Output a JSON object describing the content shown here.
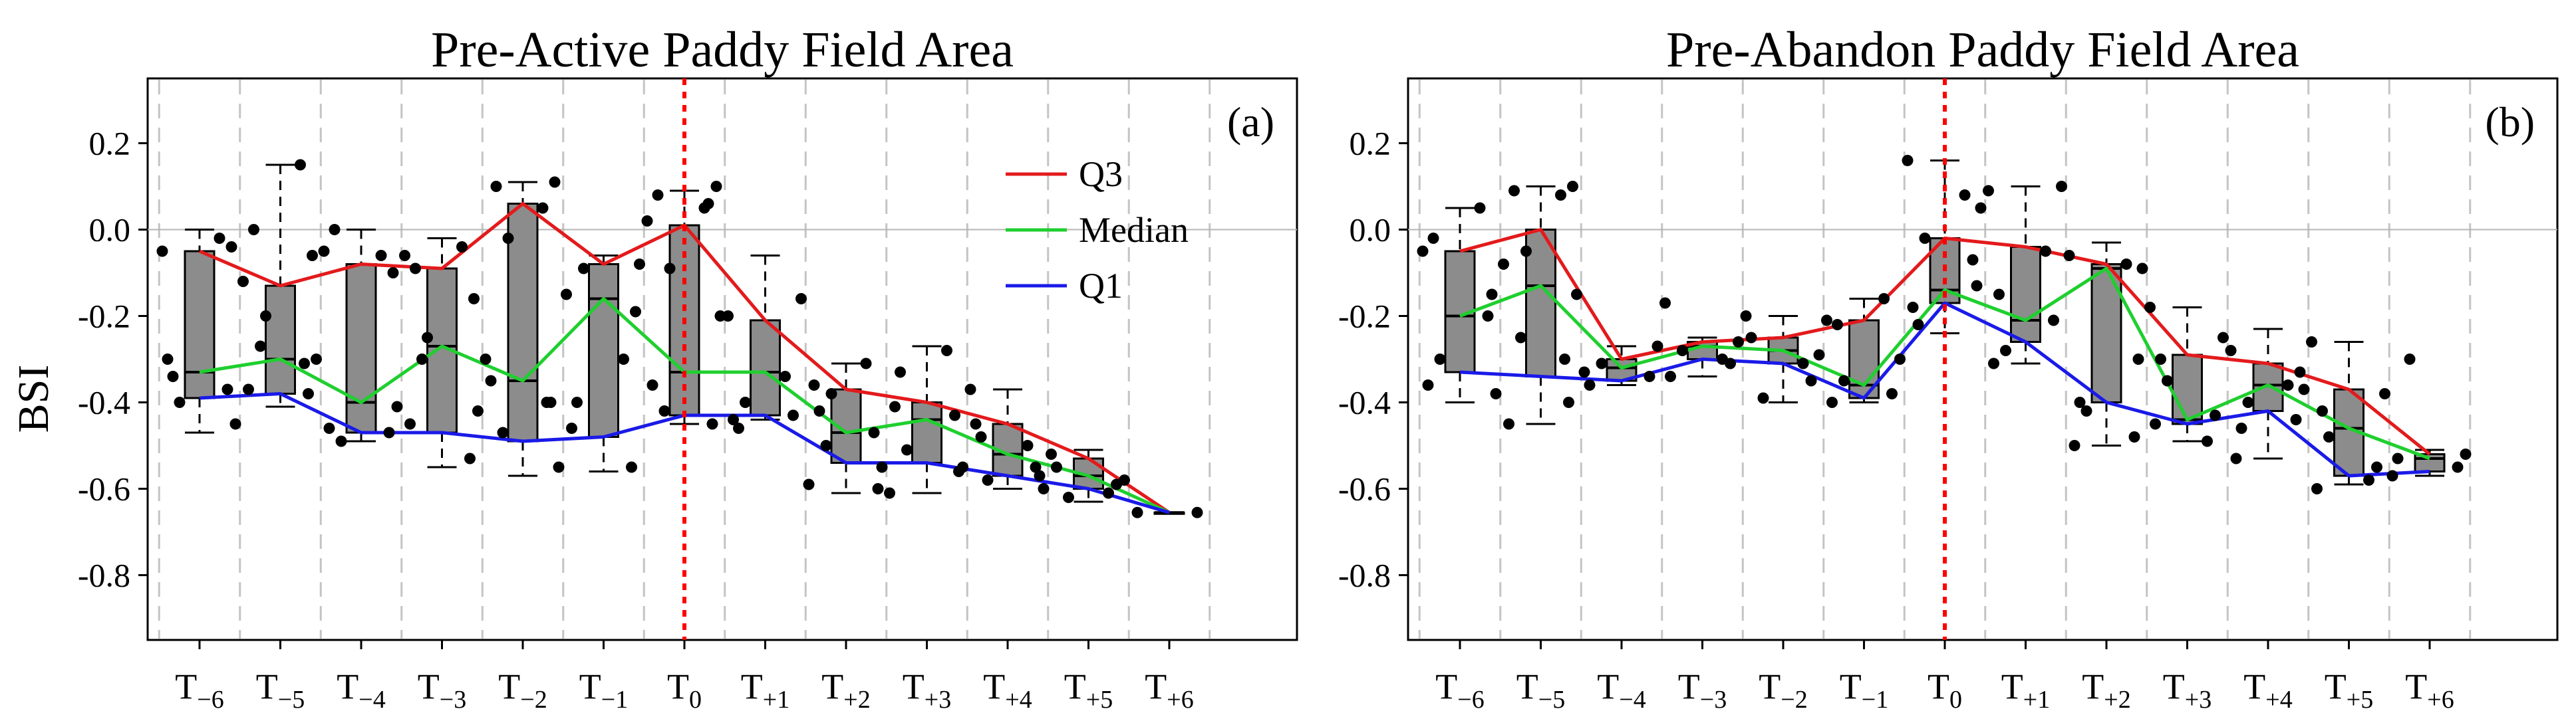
{
  "ylabel": "BSI",
  "chart_data": [
    {
      "type": "box",
      "panel_label": "(a)",
      "title": "Pre-Active Paddy Field Area",
      "ylabel": "BSI",
      "ylim": [
        -0.95,
        0.35
      ],
      "yticks": [
        0.2,
        0.0,
        -0.2,
        -0.4,
        -0.6,
        -0.8
      ],
      "ytick_labels": [
        "0.2",
        "0.0",
        "-0.2",
        "-0.4",
        "-0.6",
        "-0.8"
      ],
      "reference_line_y": 0.0,
      "event_line_category": "T0",
      "categories": [
        "T-6",
        "T-5",
        "T-4",
        "T-3",
        "T-2",
        "T-1",
        "T0",
        "T+1",
        "T+2",
        "T+3",
        "T+4",
        "T+5",
        "T+6"
      ],
      "tick_labels": [
        {
          "base": "T",
          "sub": "−6"
        },
        {
          "base": "T",
          "sub": "−5"
        },
        {
          "base": "T",
          "sub": "−4"
        },
        {
          "base": "T",
          "sub": "−3"
        },
        {
          "base": "T",
          "sub": "−2"
        },
        {
          "base": "T",
          "sub": "−1"
        },
        {
          "base": "T",
          "sub": "0"
        },
        {
          "base": "T",
          "sub": "+1"
        },
        {
          "base": "T",
          "sub": "+2"
        },
        {
          "base": "T",
          "sub": "+3"
        },
        {
          "base": "T",
          "sub": "+4"
        },
        {
          "base": "T",
          "sub": "+5"
        },
        {
          "base": "T",
          "sub": "+6"
        }
      ],
      "boxes": [
        {
          "whisker_low": -0.47,
          "q1": -0.39,
          "median": -0.33,
          "q3": -0.05,
          "whisker_high": 0.0
        },
        {
          "whisker_low": -0.41,
          "q1": -0.38,
          "median": -0.3,
          "q3": -0.13,
          "whisker_high": 0.15
        },
        {
          "whisker_low": -0.49,
          "q1": -0.47,
          "median": -0.4,
          "q3": -0.08,
          "whisker_high": 0.0
        },
        {
          "whisker_low": -0.55,
          "q1": -0.47,
          "median": -0.27,
          "q3": -0.09,
          "whisker_high": -0.02
        },
        {
          "whisker_low": -0.57,
          "q1": -0.49,
          "median": -0.35,
          "q3": 0.06,
          "whisker_high": 0.11
        },
        {
          "whisker_low": -0.56,
          "q1": -0.48,
          "median": -0.16,
          "q3": -0.08,
          "whisker_high": -0.06
        },
        {
          "whisker_low": -0.45,
          "q1": -0.43,
          "median": -0.33,
          "q3": 0.01,
          "whisker_high": 0.09
        },
        {
          "whisker_low": -0.44,
          "q1": -0.43,
          "median": -0.33,
          "q3": -0.21,
          "whisker_high": -0.06
        },
        {
          "whisker_low": -0.61,
          "q1": -0.54,
          "median": -0.47,
          "q3": -0.37,
          "whisker_high": -0.31
        },
        {
          "whisker_low": -0.61,
          "q1": -0.54,
          "median": -0.44,
          "q3": -0.4,
          "whisker_high": -0.27
        },
        {
          "whisker_low": -0.6,
          "q1": -0.57,
          "median": -0.52,
          "q3": -0.45,
          "whisker_high": -0.37
        },
        {
          "whisker_low": -0.63,
          "q1": -0.6,
          "median": -0.57,
          "q3": -0.53,
          "whisker_high": -0.51
        },
        {
          "whisker_low": -0.655,
          "q1": -0.655,
          "median": -0.655,
          "q3": -0.655,
          "whisker_high": -0.655
        }
      ],
      "series": [
        {
          "name": "Q3",
          "color": "#e31a1c",
          "values": [
            -0.05,
            -0.13,
            -0.08,
            -0.09,
            0.06,
            -0.08,
            0.01,
            -0.21,
            -0.37,
            -0.4,
            -0.45,
            -0.53,
            -0.655
          ]
        },
        {
          "name": "Median",
          "color": "#1fcf2f",
          "values": [
            -0.33,
            -0.3,
            -0.4,
            -0.27,
            -0.35,
            -0.16,
            -0.33,
            -0.33,
            -0.47,
            -0.44,
            -0.52,
            -0.57,
            -0.655
          ]
        },
        {
          "name": "Q1",
          "color": "#1a1ae8",
          "values": [
            -0.39,
            -0.38,
            -0.47,
            -0.47,
            -0.49,
            -0.48,
            -0.43,
            -0.43,
            -0.54,
            -0.54,
            -0.57,
            -0.6,
            -0.655
          ]
        }
      ],
      "points": [
        [
          -0.3,
          -0.37,
          -0.4,
          -0.45,
          -0.05,
          -0.02,
          -0.34,
          -0.04
        ],
        [
          -0.37,
          -0.38,
          -0.27,
          -0.3,
          -0.12,
          0.15,
          0.0,
          -0.06,
          -0.2,
          -0.31
        ],
        [
          -0.46,
          -0.47,
          -0.49,
          -0.41,
          -0.05,
          -0.06,
          0.0,
          -0.1
        ],
        [
          -0.45,
          -0.53,
          -0.3,
          -0.42,
          -0.06,
          -0.04,
          -0.09,
          -0.16,
          -0.25
        ],
        [
          -0.35,
          -0.4,
          -0.47,
          -0.55,
          -0.3,
          0.05,
          0.1,
          0.11,
          -0.02,
          -0.4
        ],
        [
          -0.46,
          -0.55,
          -0.09,
          -0.08,
          -0.15,
          -0.3,
          -0.4,
          -0.19
        ],
        [
          -0.36,
          -0.45,
          -0.42,
          -0.2,
          0.02,
          0.05,
          0.08,
          0.1,
          -0.09,
          0.06
        ],
        [
          -0.44,
          -0.43,
          -0.4,
          -0.16,
          -0.2,
          -0.34,
          -0.46
        ],
        [
          -0.36,
          -0.47,
          -0.5,
          -0.55,
          -0.59,
          -0.31,
          -0.42,
          -0.6,
          -0.38
        ],
        [
          -0.41,
          -0.43,
          -0.51,
          -0.55,
          -0.61,
          -0.28,
          -0.33,
          -0.56
        ],
        [
          -0.45,
          -0.55,
          -0.58,
          -0.6,
          -0.37,
          -0.5,
          -0.48,
          -0.57
        ],
        [
          -0.55,
          -0.59,
          -0.62,
          -0.58,
          -0.52,
          -0.61
        ],
        [
          -0.655,
          -0.655
        ]
      ],
      "legend": {
        "position": "top-right",
        "entries": [
          "Q3",
          "Median",
          "Q1"
        ]
      }
    },
    {
      "type": "box",
      "panel_label": "(b)",
      "title": "Pre-Abandon Paddy Field Area",
      "ylabel": "",
      "ylim": [
        -0.95,
        0.35
      ],
      "yticks": [
        0.2,
        0.0,
        -0.2,
        -0.4,
        -0.6,
        -0.8
      ],
      "ytick_labels": [
        "0.2",
        "0.0",
        "-0.2",
        "-0.4",
        "-0.6",
        "-0.8"
      ],
      "reference_line_y": 0.0,
      "event_line_category": "T0",
      "categories": [
        "T-6",
        "T-5",
        "T-4",
        "T-3",
        "T-2",
        "T-1",
        "T0",
        "T+1",
        "T+2",
        "T+3",
        "T+4",
        "T+5",
        "T+6"
      ],
      "tick_labels": [
        {
          "base": "T",
          "sub": "−6"
        },
        {
          "base": "T",
          "sub": "−5"
        },
        {
          "base": "T",
          "sub": "−4"
        },
        {
          "base": "T",
          "sub": "−3"
        },
        {
          "base": "T",
          "sub": "−2"
        },
        {
          "base": "T",
          "sub": "−1"
        },
        {
          "base": "T",
          "sub": "0"
        },
        {
          "base": "T",
          "sub": "+1"
        },
        {
          "base": "T",
          "sub": "+2"
        },
        {
          "base": "T",
          "sub": "+3"
        },
        {
          "base": "T",
          "sub": "+4"
        },
        {
          "base": "T",
          "sub": "+5"
        },
        {
          "base": "T",
          "sub": "+6"
        }
      ],
      "boxes": [
        {
          "whisker_low": -0.4,
          "q1": -0.33,
          "median": -0.2,
          "q3": -0.05,
          "whisker_high": 0.05
        },
        {
          "whisker_low": -0.45,
          "q1": -0.34,
          "median": -0.13,
          "q3": 0.0,
          "whisker_high": 0.1
        },
        {
          "whisker_low": -0.36,
          "q1": -0.35,
          "median": -0.32,
          "q3": -0.3,
          "whisker_high": -0.27
        },
        {
          "whisker_low": -0.34,
          "q1": -0.3,
          "median": -0.27,
          "q3": -0.26,
          "whisker_high": -0.25
        },
        {
          "whisker_low": -0.4,
          "q1": -0.31,
          "median": -0.28,
          "q3": -0.25,
          "whisker_high": -0.2
        },
        {
          "whisker_low": -0.4,
          "q1": -0.39,
          "median": -0.36,
          "q3": -0.21,
          "whisker_high": -0.16
        },
        {
          "whisker_low": -0.24,
          "q1": -0.17,
          "median": -0.14,
          "q3": -0.02,
          "whisker_high": 0.16
        },
        {
          "whisker_low": -0.31,
          "q1": -0.26,
          "median": -0.21,
          "q3": -0.04,
          "whisker_high": 0.1
        },
        {
          "whisker_low": -0.5,
          "q1": -0.4,
          "median": -0.09,
          "q3": -0.08,
          "whisker_high": -0.03
        },
        {
          "whisker_low": -0.49,
          "q1": -0.45,
          "median": -0.44,
          "q3": -0.29,
          "whisker_high": -0.18
        },
        {
          "whisker_low": -0.53,
          "q1": -0.42,
          "median": -0.36,
          "q3": -0.31,
          "whisker_high": -0.23
        },
        {
          "whisker_low": -0.59,
          "q1": -0.57,
          "median": -0.46,
          "q3": -0.37,
          "whisker_high": -0.26
        },
        {
          "whisker_low": -0.57,
          "q1": -0.56,
          "median": -0.53,
          "q3": -0.52,
          "whisker_high": -0.51
        }
      ],
      "series": [
        {
          "name": "Q3",
          "color": "#e31a1c",
          "values": [
            -0.05,
            0.0,
            -0.3,
            -0.26,
            -0.25,
            -0.21,
            -0.02,
            -0.04,
            -0.08,
            -0.29,
            -0.31,
            -0.37,
            -0.52
          ]
        },
        {
          "name": "Median",
          "color": "#1fcf2f",
          "values": [
            -0.2,
            -0.13,
            -0.32,
            -0.27,
            -0.28,
            -0.36,
            -0.14,
            -0.21,
            -0.09,
            -0.44,
            -0.36,
            -0.46,
            -0.53
          ]
        },
        {
          "name": "Q1",
          "color": "#1a1ae8",
          "values": [
            -0.33,
            -0.34,
            -0.35,
            -0.3,
            -0.31,
            -0.39,
            -0.17,
            -0.26,
            -0.4,
            -0.45,
            -0.42,
            -0.57,
            -0.56
          ]
        }
      ],
      "points": [
        [
          -0.36,
          -0.2,
          -0.3,
          -0.38,
          -0.05,
          0.05,
          -0.02,
          -0.15
        ],
        [
          -0.45,
          -0.4,
          -0.25,
          -0.15,
          -0.08,
          0.08,
          0.09,
          0.1,
          -0.05,
          -0.3
        ],
        [
          -0.36,
          -0.34,
          -0.31,
          -0.27,
          -0.33
        ],
        [
          -0.34,
          -0.31,
          -0.28,
          -0.26,
          -0.17,
          -0.3
        ],
        [
          -0.25,
          -0.35,
          -0.39,
          -0.29,
          -0.2,
          -0.31
        ],
        [
          -0.4,
          -0.38,
          -0.35,
          -0.3,
          -0.21,
          -0.16,
          -0.22
        ],
        [
          -0.18,
          -0.07,
          -0.02,
          0.05,
          0.16,
          0.08,
          -0.22,
          -0.13
        ],
        [
          -0.31,
          -0.21,
          -0.28,
          0.1,
          0.09,
          -0.05,
          -0.15
        ],
        [
          -0.5,
          -0.48,
          -0.42,
          -0.09,
          -0.06,
          -0.08,
          -0.4,
          -0.3
        ],
        [
          -0.45,
          -0.43,
          -0.35,
          -0.25,
          -0.18,
          -0.49,
          -0.3
        ],
        [
          -0.53,
          -0.44,
          -0.4,
          -0.37,
          -0.28,
          -0.36,
          -0.46,
          -0.33
        ],
        [
          -0.6,
          -0.55,
          -0.48,
          -0.38,
          -0.26,
          -0.58,
          -0.42
        ],
        [
          -0.53,
          -0.55,
          -0.3,
          -0.52,
          -0.57
        ]
      ],
      "legend": null
    }
  ]
}
